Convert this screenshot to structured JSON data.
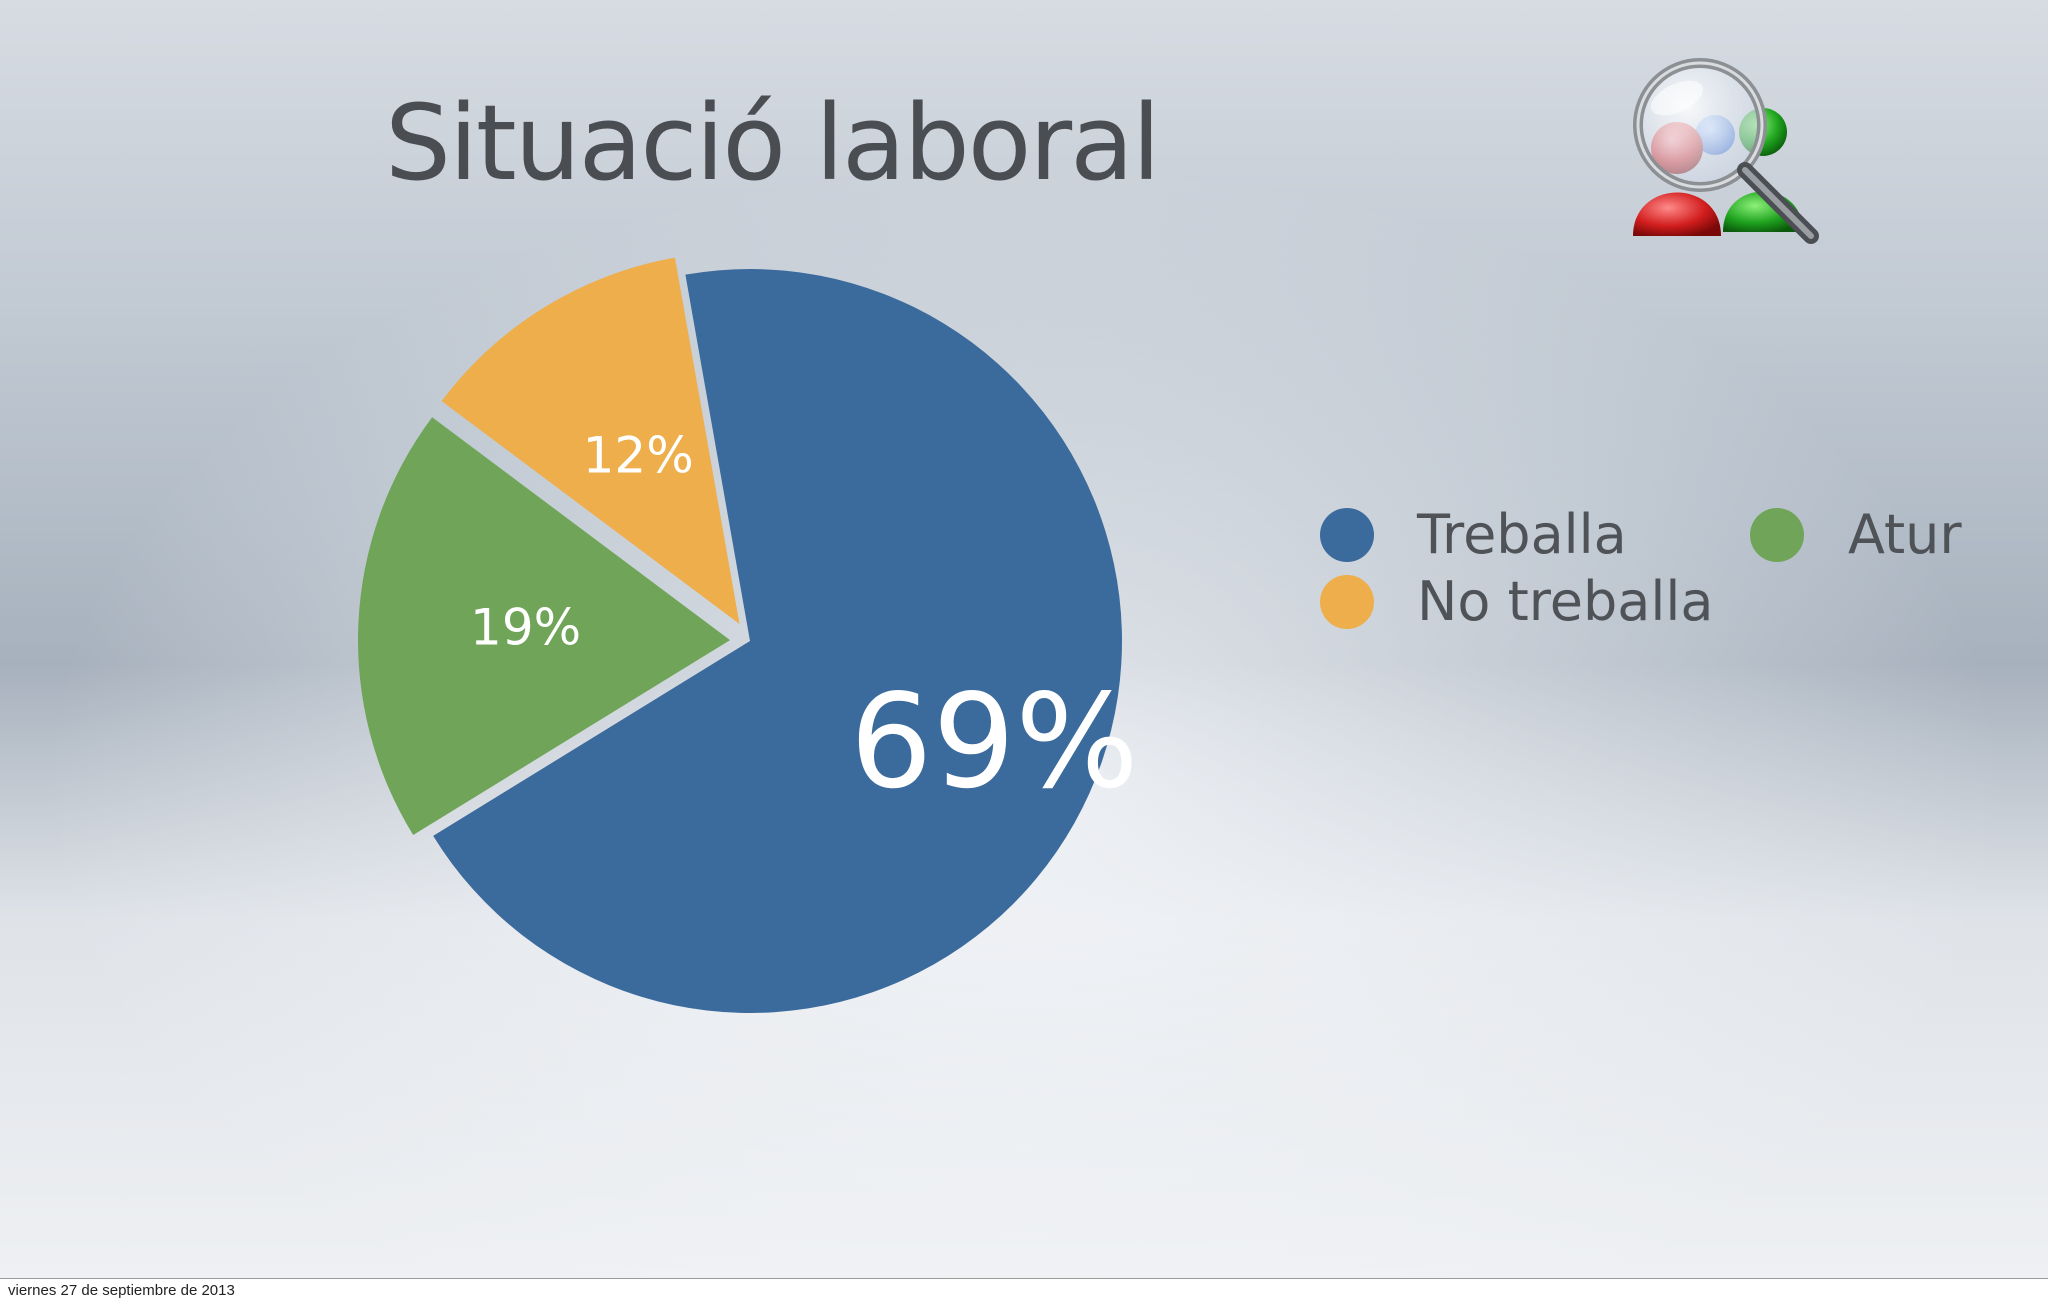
{
  "slide": {
    "title": "Situació laboral"
  },
  "chart_data": {
    "type": "pie",
    "title": "",
    "categories": [
      "Treballa",
      "No treballa",
      "Atur"
    ],
    "values": [
      69,
      12,
      19
    ],
    "value_labels": [
      "69%",
      "12%",
      "19%"
    ],
    "colors": [
      "#3b6a9c",
      "#eeae4b",
      "#70a459"
    ],
    "legend_position": "right"
  },
  "legend": {
    "items": [
      {
        "label": "Treballa",
        "color": "#3b6a9c"
      },
      {
        "label": "Atur",
        "color": "#70a459"
      },
      {
        "label": "No treballa",
        "color": "#eeae4b"
      }
    ]
  },
  "logo": {
    "icon": "users-search-icon"
  },
  "footer": {
    "date": "viernes 27 de septiembre de 2013"
  }
}
